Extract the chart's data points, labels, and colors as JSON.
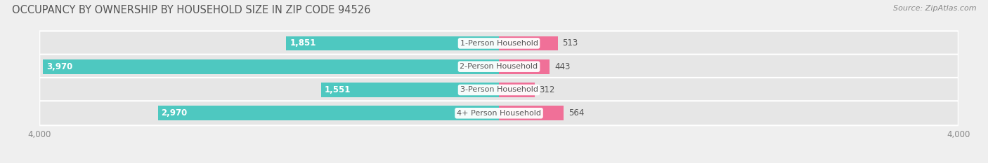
{
  "title": "OCCUPANCY BY OWNERSHIP BY HOUSEHOLD SIZE IN ZIP CODE 94526",
  "source": "Source: ZipAtlas.com",
  "categories": [
    "1-Person Household",
    "2-Person Household",
    "3-Person Household",
    "4+ Person Household"
  ],
  "owner_values": [
    1851,
    3970,
    1551,
    2970
  ],
  "renter_values": [
    513,
    443,
    312,
    564
  ],
  "owner_color": "#4EC8C0",
  "renter_color": "#F07098",
  "axis_max": 4000,
  "bg_color": "#efefef",
  "bar_bg_color": "#e2e2e2",
  "row_bg_color": "#e6e6e6",
  "title_fontsize": 10.5,
  "source_fontsize": 8,
  "label_fontsize": 8.5,
  "tick_fontsize": 8.5,
  "legend_fontsize": 9,
  "title_color": "#555555",
  "label_color": "#555555",
  "tick_color": "#888888",
  "value_label_fontsize": 8.5,
  "cat_label_fontsize": 8
}
